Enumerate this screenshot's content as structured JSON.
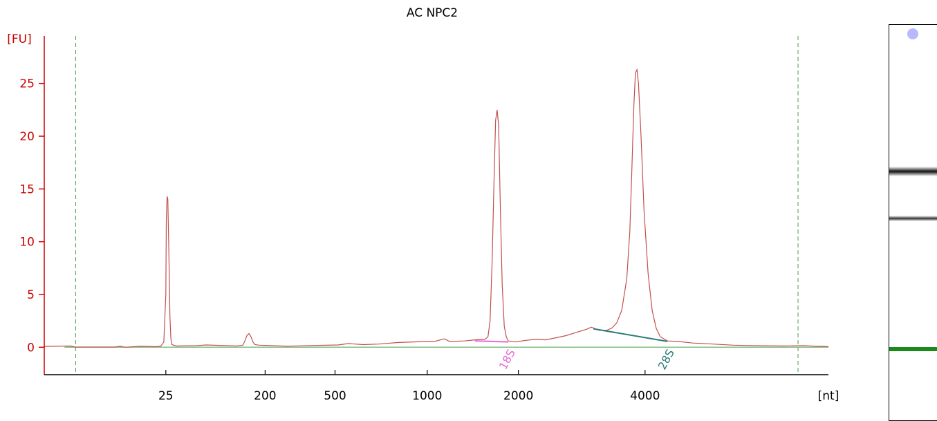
{
  "chart_data": {
    "type": "line",
    "title": "AC NPC2",
    "ylabel": "[FU]",
    "xlabel": "[nt]",
    "ylim": [
      -2.6,
      29.5
    ],
    "y_ticks": [
      0,
      5,
      10,
      15,
      20,
      25
    ],
    "x_tick_labels": [
      "25",
      "200",
      "500",
      "1000",
      "2000",
      "4000"
    ],
    "x_tick_positions": [
      0.0,
      0.98,
      1.67,
      2.58,
      3.48,
      4.73
    ],
    "x_range": [
      -1.2,
      6.54
    ],
    "grid": false,
    "legend": "none",
    "series": [
      {
        "name": "",
        "color": "#c0504d",
        "points": [
          [
            -1.2,
            0.08
          ],
          [
            -0.94,
            0.12
          ],
          [
            -0.9,
            0.02
          ],
          [
            -0.5,
            0.02
          ],
          [
            -0.45,
            0.1
          ],
          [
            -0.4,
            0.0
          ],
          [
            -0.25,
            0.1
          ],
          [
            -0.1,
            0.05
          ],
          [
            -0.05,
            0.1
          ],
          [
            -0.02,
            0.5
          ],
          [
            0.0,
            5.0
          ],
          [
            0.005,
            12.0
          ],
          [
            0.012,
            14.3
          ],
          [
            0.02,
            14.0
          ],
          [
            0.03,
            9.0
          ],
          [
            0.04,
            3.0
          ],
          [
            0.05,
            0.8
          ],
          [
            0.06,
            0.25
          ],
          [
            0.1,
            0.12
          ],
          [
            0.3,
            0.15
          ],
          [
            0.4,
            0.22
          ],
          [
            0.6,
            0.15
          ],
          [
            0.7,
            0.12
          ],
          [
            0.76,
            0.2
          ],
          [
            0.78,
            0.6
          ],
          [
            0.8,
            1.1
          ],
          [
            0.82,
            1.3
          ],
          [
            0.84,
            1.0
          ],
          [
            0.86,
            0.5
          ],
          [
            0.88,
            0.25
          ],
          [
            0.92,
            0.2
          ],
          [
            1.05,
            0.15
          ],
          [
            1.2,
            0.1
          ],
          [
            1.5,
            0.18
          ],
          [
            1.7,
            0.22
          ],
          [
            1.8,
            0.35
          ],
          [
            1.95,
            0.25
          ],
          [
            2.1,
            0.3
          ],
          [
            2.3,
            0.45
          ],
          [
            2.5,
            0.52
          ],
          [
            2.65,
            0.55
          ],
          [
            2.75,
            0.8
          ],
          [
            2.8,
            0.55
          ],
          [
            2.95,
            0.6
          ],
          [
            3.05,
            0.7
          ],
          [
            3.15,
            0.75
          ],
          [
            3.18,
            1.0
          ],
          [
            3.2,
            2.5
          ],
          [
            3.22,
            8.0
          ],
          [
            3.24,
            16.0
          ],
          [
            3.255,
            21.5
          ],
          [
            3.27,
            22.5
          ],
          [
            3.285,
            21.0
          ],
          [
            3.3,
            14.0
          ],
          [
            3.32,
            6.0
          ],
          [
            3.34,
            2.0
          ],
          [
            3.36,
            1.0
          ],
          [
            3.38,
            0.6
          ],
          [
            3.45,
            0.5
          ],
          [
            3.55,
            0.65
          ],
          [
            3.65,
            0.75
          ],
          [
            3.75,
            0.7
          ],
          [
            3.85,
            0.9
          ],
          [
            3.95,
            1.1
          ],
          [
            4.05,
            1.4
          ],
          [
            4.15,
            1.7
          ],
          [
            4.2,
            1.9
          ],
          [
            4.28,
            1.6
          ],
          [
            4.35,
            1.6
          ],
          [
            4.4,
            1.8
          ],
          [
            4.45,
            2.3
          ],
          [
            4.5,
            3.5
          ],
          [
            4.55,
            6.5
          ],
          [
            4.58,
            11.0
          ],
          [
            4.6,
            17.0
          ],
          [
            4.62,
            23.0
          ],
          [
            4.635,
            26.0
          ],
          [
            4.65,
            26.3
          ],
          [
            4.665,
            25.0
          ],
          [
            4.69,
            20.0
          ],
          [
            4.72,
            13.0
          ],
          [
            4.76,
            7.0
          ],
          [
            4.8,
            3.5
          ],
          [
            4.84,
            1.8
          ],
          [
            4.88,
            1.0
          ],
          [
            4.95,
            0.6
          ],
          [
            5.05,
            0.55
          ],
          [
            5.2,
            0.4
          ],
          [
            5.4,
            0.3
          ],
          [
            5.6,
            0.2
          ],
          [
            5.8,
            0.15
          ],
          [
            6.1,
            0.12
          ],
          [
            6.3,
            0.15
          ],
          [
            6.4,
            0.1
          ],
          [
            6.5,
            0.08
          ],
          [
            6.54,
            0.05
          ]
        ]
      }
    ],
    "baseline": {
      "y": 0,
      "color": "#7fbf7f"
    },
    "markers": [
      {
        "label": "18S",
        "color": "#e86ad6",
        "x_start": 3.05,
        "y_start": 0.6,
        "x_end": 3.38,
        "y_end": 0.5
      },
      {
        "label": "28S",
        "color": "#2e7a7a",
        "x_start": 4.22,
        "y_start": 1.75,
        "x_end": 4.95,
        "y_end": 0.55
      }
    ],
    "vertical_guides": [
      {
        "x": -0.89,
        "color": "#4c9a4c"
      },
      {
        "x": 6.24,
        "color": "#4c9a4c"
      }
    ]
  },
  "gel": {
    "bands": [
      {
        "position": 0.37,
        "intensity": "strong",
        "color": "#111111"
      },
      {
        "position": 0.49,
        "intensity": "medium",
        "color": "#333333"
      },
      {
        "position": 0.82,
        "intensity": "marker",
        "color": "#1a8a1a"
      }
    ],
    "top_marker_color": "#b8b8ff"
  },
  "colors": {
    "axis_y": "#cc0000",
    "axis_x": "#000000",
    "trace": "#c0504d"
  }
}
